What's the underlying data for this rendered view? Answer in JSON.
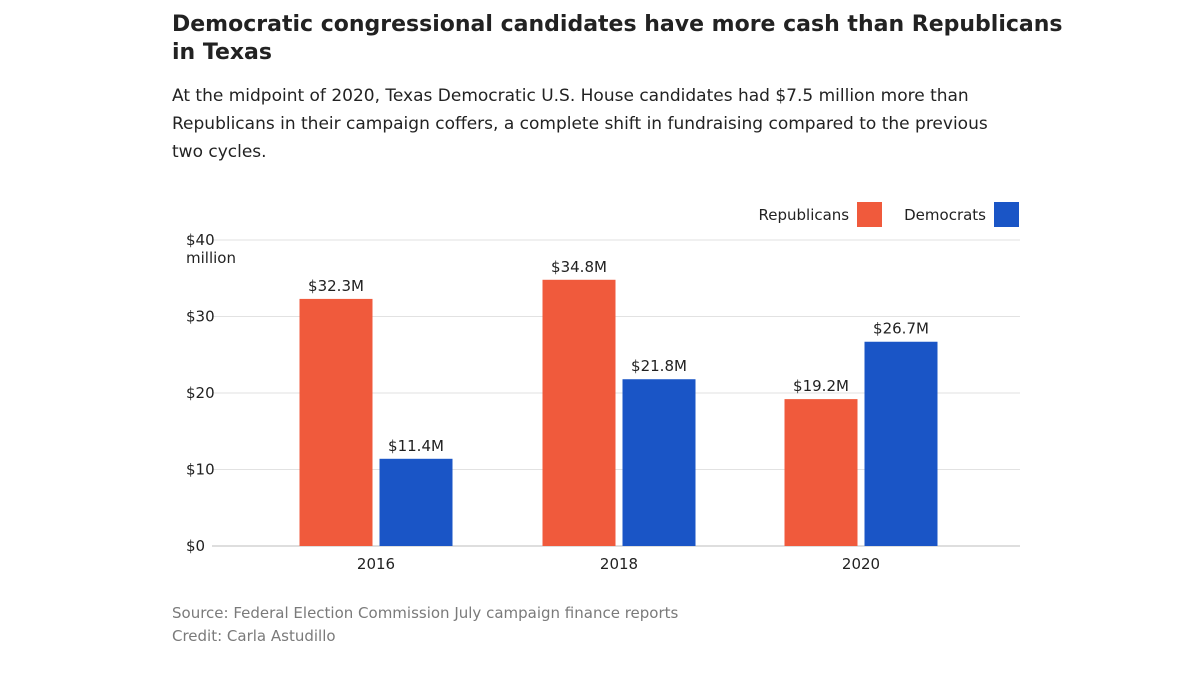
{
  "title": "Democratic congressional candidates have more cash than Republicans in Texas",
  "subtitle": "At the midpoint of 2020, Texas Democratic U.S. House candidates had $7.5 million more than Republicans in their campaign coffers, a complete shift in fundraising compared to the previous two cycles.",
  "colors": {
    "republicans": "#f05a3c",
    "democrats": "#1a55c6",
    "grid": "#e2e2e2",
    "text": "#222222",
    "footer": "#7a7a7a"
  },
  "chart_data": {
    "type": "bar",
    "categories": [
      "2016",
      "2018",
      "2020"
    ],
    "series": [
      {
        "name": "Republicans",
        "values": [
          32.3,
          34.8,
          19.2
        ],
        "labels": [
          "$32.3M",
          "$34.8M",
          "$19.2M"
        ]
      },
      {
        "name": "Democrats",
        "values": [
          11.4,
          21.8,
          26.7
        ],
        "labels": [
          "$11.4M",
          "$21.8M",
          "$26.7M"
        ]
      }
    ],
    "ylim": [
      0,
      40
    ],
    "yticks": [
      0,
      10,
      20,
      30,
      40
    ],
    "ytick_labels": [
      "$0",
      "$10",
      "$20",
      "$30",
      "$40"
    ],
    "ylabel": "million",
    "grid": true,
    "legend_position": "top-right"
  },
  "footer": {
    "source": "Source: Federal Election Commission July campaign finance reports",
    "credit": "Credit: Carla Astudillo"
  }
}
